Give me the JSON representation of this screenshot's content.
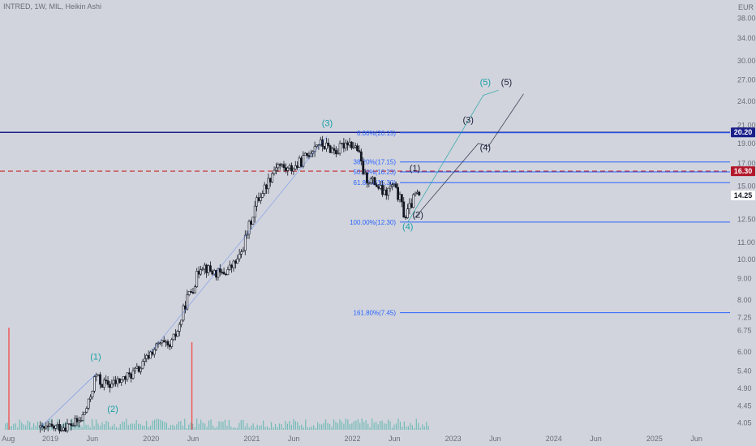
{
  "header": {
    "symbol_line": "INTRED, 1W, MIL, Heikin Ashi",
    "currency": "EUR"
  },
  "price_tags": [
    {
      "value": 20.2,
      "label": "20.20",
      "bg": "#1a1f8a",
      "fg": "#ffffff"
    },
    {
      "value": 16.3,
      "label": "16.30",
      "bg": "#b2182b",
      "fg": "#ffffff"
    },
    {
      "value": 14.25,
      "label": "14.25",
      "bg": "#ffffff",
      "fg": "#131722"
    }
  ],
  "colors": {
    "background": "#d1d4dc",
    "candle": "#131722",
    "hline_blue": "#1a1f8a",
    "hline_red": "#c62828",
    "fib": "#2962ff",
    "wave_teal": "#1aa0a8",
    "wave_dark": "#1a1f3a",
    "volume": "#26a69a",
    "volume_spike": "#ef5350"
  },
  "chart_data": {
    "type": "candlestick",
    "title": "INTRED, 1W, MIL, Heikin Ashi",
    "y_scale": "log",
    "ylim": [
      3.9,
      42.0
    ],
    "y_ticks": [
      {
        "v": 38.0,
        "label": "38.00"
      },
      {
        "v": 34.0,
        "label": "34.00"
      },
      {
        "v": 30.0,
        "label": "30.00"
      },
      {
        "v": 27.0,
        "label": "27.00"
      },
      {
        "v": 24.0,
        "label": "24.00"
      },
      {
        "v": 21.0,
        "label": "21.00"
      },
      {
        "v": 19.0,
        "label": "19.00"
      },
      {
        "v": 17.0,
        "label": "17.00"
      },
      {
        "v": 15.0,
        "label": "15.00"
      },
      {
        "v": 12.5,
        "label": "12.50"
      },
      {
        "v": 11.0,
        "label": "11.00"
      },
      {
        "v": 10.0,
        "label": "10.00"
      },
      {
        "v": 9.0,
        "label": "9.00"
      },
      {
        "v": 8.0,
        "label": "8.00"
      },
      {
        "v": 7.25,
        "label": "7.25"
      },
      {
        "v": 6.75,
        "label": "6.75"
      },
      {
        "v": 6.0,
        "label": "6.00"
      },
      {
        "v": 5.4,
        "label": "5.40"
      },
      {
        "v": 4.9,
        "label": "4.90"
      },
      {
        "v": 4.45,
        "label": "4.45"
      },
      {
        "v": 4.05,
        "label": "4.05"
      }
    ],
    "x_ticks": [
      {
        "t": 2018.583,
        "label": "Aug"
      },
      {
        "t": 2019.0,
        "label": "2019"
      },
      {
        "t": 2019.417,
        "label": "Jun"
      },
      {
        "t": 2020.0,
        "label": "2020"
      },
      {
        "t": 2020.417,
        "label": "Jun"
      },
      {
        "t": 2021.0,
        "label": "2021"
      },
      {
        "t": 2021.417,
        "label": "Jun"
      },
      {
        "t": 2022.0,
        "label": "2022"
      },
      {
        "t": 2022.417,
        "label": "Jun"
      },
      {
        "t": 2023.0,
        "label": "2023"
      },
      {
        "t": 2023.417,
        "label": "Jun"
      },
      {
        "t": 2024.0,
        "label": "2024"
      },
      {
        "t": 2024.417,
        "label": "Jun"
      },
      {
        "t": 2025.0,
        "label": "2025"
      },
      {
        "t": 2025.417,
        "label": "Jun"
      }
    ],
    "price_path": [
      [
        2018.9,
        3.9
      ],
      [
        2019.05,
        3.95
      ],
      [
        2019.2,
        4.0
      ],
      [
        2019.3,
        4.1
      ],
      [
        2019.38,
        4.5
      ],
      [
        2019.45,
        5.3
      ],
      [
        2019.5,
        5.05
      ],
      [
        2019.6,
        5.0
      ],
      [
        2019.75,
        5.2
      ],
      [
        2019.9,
        5.5
      ],
      [
        2020.0,
        6.0
      ],
      [
        2020.1,
        6.3
      ],
      [
        2020.18,
        6.1
      ],
      [
        2020.28,
        6.9
      ],
      [
        2020.35,
        8.0
      ],
      [
        2020.42,
        8.6
      ],
      [
        2020.5,
        9.8
      ],
      [
        2020.58,
        9.4
      ],
      [
        2020.7,
        9.2
      ],
      [
        2020.8,
        9.6
      ],
      [
        2020.88,
        10.1
      ],
      [
        2020.95,
        11.5
      ],
      [
        2021.05,
        13.8
      ],
      [
        2021.15,
        15.2
      ],
      [
        2021.25,
        17.0
      ],
      [
        2021.35,
        16.4
      ],
      [
        2021.45,
        16.8
      ],
      [
        2021.55,
        17.8
      ],
      [
        2021.65,
        19.1
      ],
      [
        2021.75,
        18.6
      ],
      [
        2021.85,
        18.2
      ],
      [
        2021.95,
        19.3
      ],
      [
        2022.05,
        18.4
      ],
      [
        2022.12,
        15.8
      ],
      [
        2022.22,
        15.3
      ],
      [
        2022.32,
        14.3
      ],
      [
        2022.4,
        15.1
      ],
      [
        2022.48,
        13.8
      ],
      [
        2022.52,
        12.6
      ],
      [
        2022.58,
        13.5
      ],
      [
        2022.63,
        14.4
      ],
      [
        2022.68,
        14.1
      ]
    ],
    "volume_spikes": [
      {
        "t": 2018.583,
        "v": 7.0
      },
      {
        "t": 2020.4,
        "v": 6.0
      }
    ],
    "horizontal_lines": [
      {
        "value": 20.2,
        "style": "solid",
        "color": "#1a1f8a"
      },
      {
        "value": 16.3,
        "style": "dashed",
        "color": "#c62828"
      }
    ],
    "fib_levels": [
      {
        "value": 20.15,
        "label": "0.00%(20.15)"
      },
      {
        "value": 17.15,
        "label": "38.20%(17.15)"
      },
      {
        "value": 16.23,
        "label": "50.00%(16.23)"
      },
      {
        "value": 15.3,
        "label": "61.80%(15.30)"
      },
      {
        "value": 12.3,
        "label": "100.00%(12.30)"
      },
      {
        "value": 7.45,
        "label": "161.80%(7.45)"
      }
    ],
    "projections": [
      {
        "name": "teal",
        "points": [
          [
            2022.55,
            12.3
          ],
          [
            2023.3,
            24.8
          ],
          [
            2023.45,
            25.5
          ]
        ]
      },
      {
        "name": "dark",
        "points": [
          [
            2022.62,
            12.6
          ],
          [
            2023.25,
            19.0
          ],
          [
            2023.35,
            18.7
          ],
          [
            2023.7,
            25.0
          ]
        ]
      }
    ],
    "wave_labels": [
      {
        "text": "(1)",
        "t": 2019.45,
        "price": 5.75,
        "color": "teal"
      },
      {
        "text": "(2)",
        "t": 2019.62,
        "price": 4.3,
        "color": "teal"
      },
      {
        "text": "(3)",
        "t": 2021.75,
        "price": 20.9,
        "color": "teal"
      },
      {
        "text": "(4)",
        "t": 2022.55,
        "price": 11.8,
        "color": "teal"
      },
      {
        "text": "(5)",
        "t": 2023.32,
        "price": 26.2,
        "color": "teal"
      },
      {
        "text": "(1)",
        "t": 2022.62,
        "price": 16.3,
        "color": "dark"
      },
      {
        "text": "(2)",
        "t": 2022.65,
        "price": 12.6,
        "color": "dark"
      },
      {
        "text": "(3)",
        "t": 2023.15,
        "price": 21.3,
        "color": "dark"
      },
      {
        "text": "(4)",
        "t": 2023.32,
        "price": 18.3,
        "color": "dark"
      },
      {
        "text": "(5)",
        "t": 2023.53,
        "price": 26.2,
        "color": "dark"
      }
    ]
  }
}
